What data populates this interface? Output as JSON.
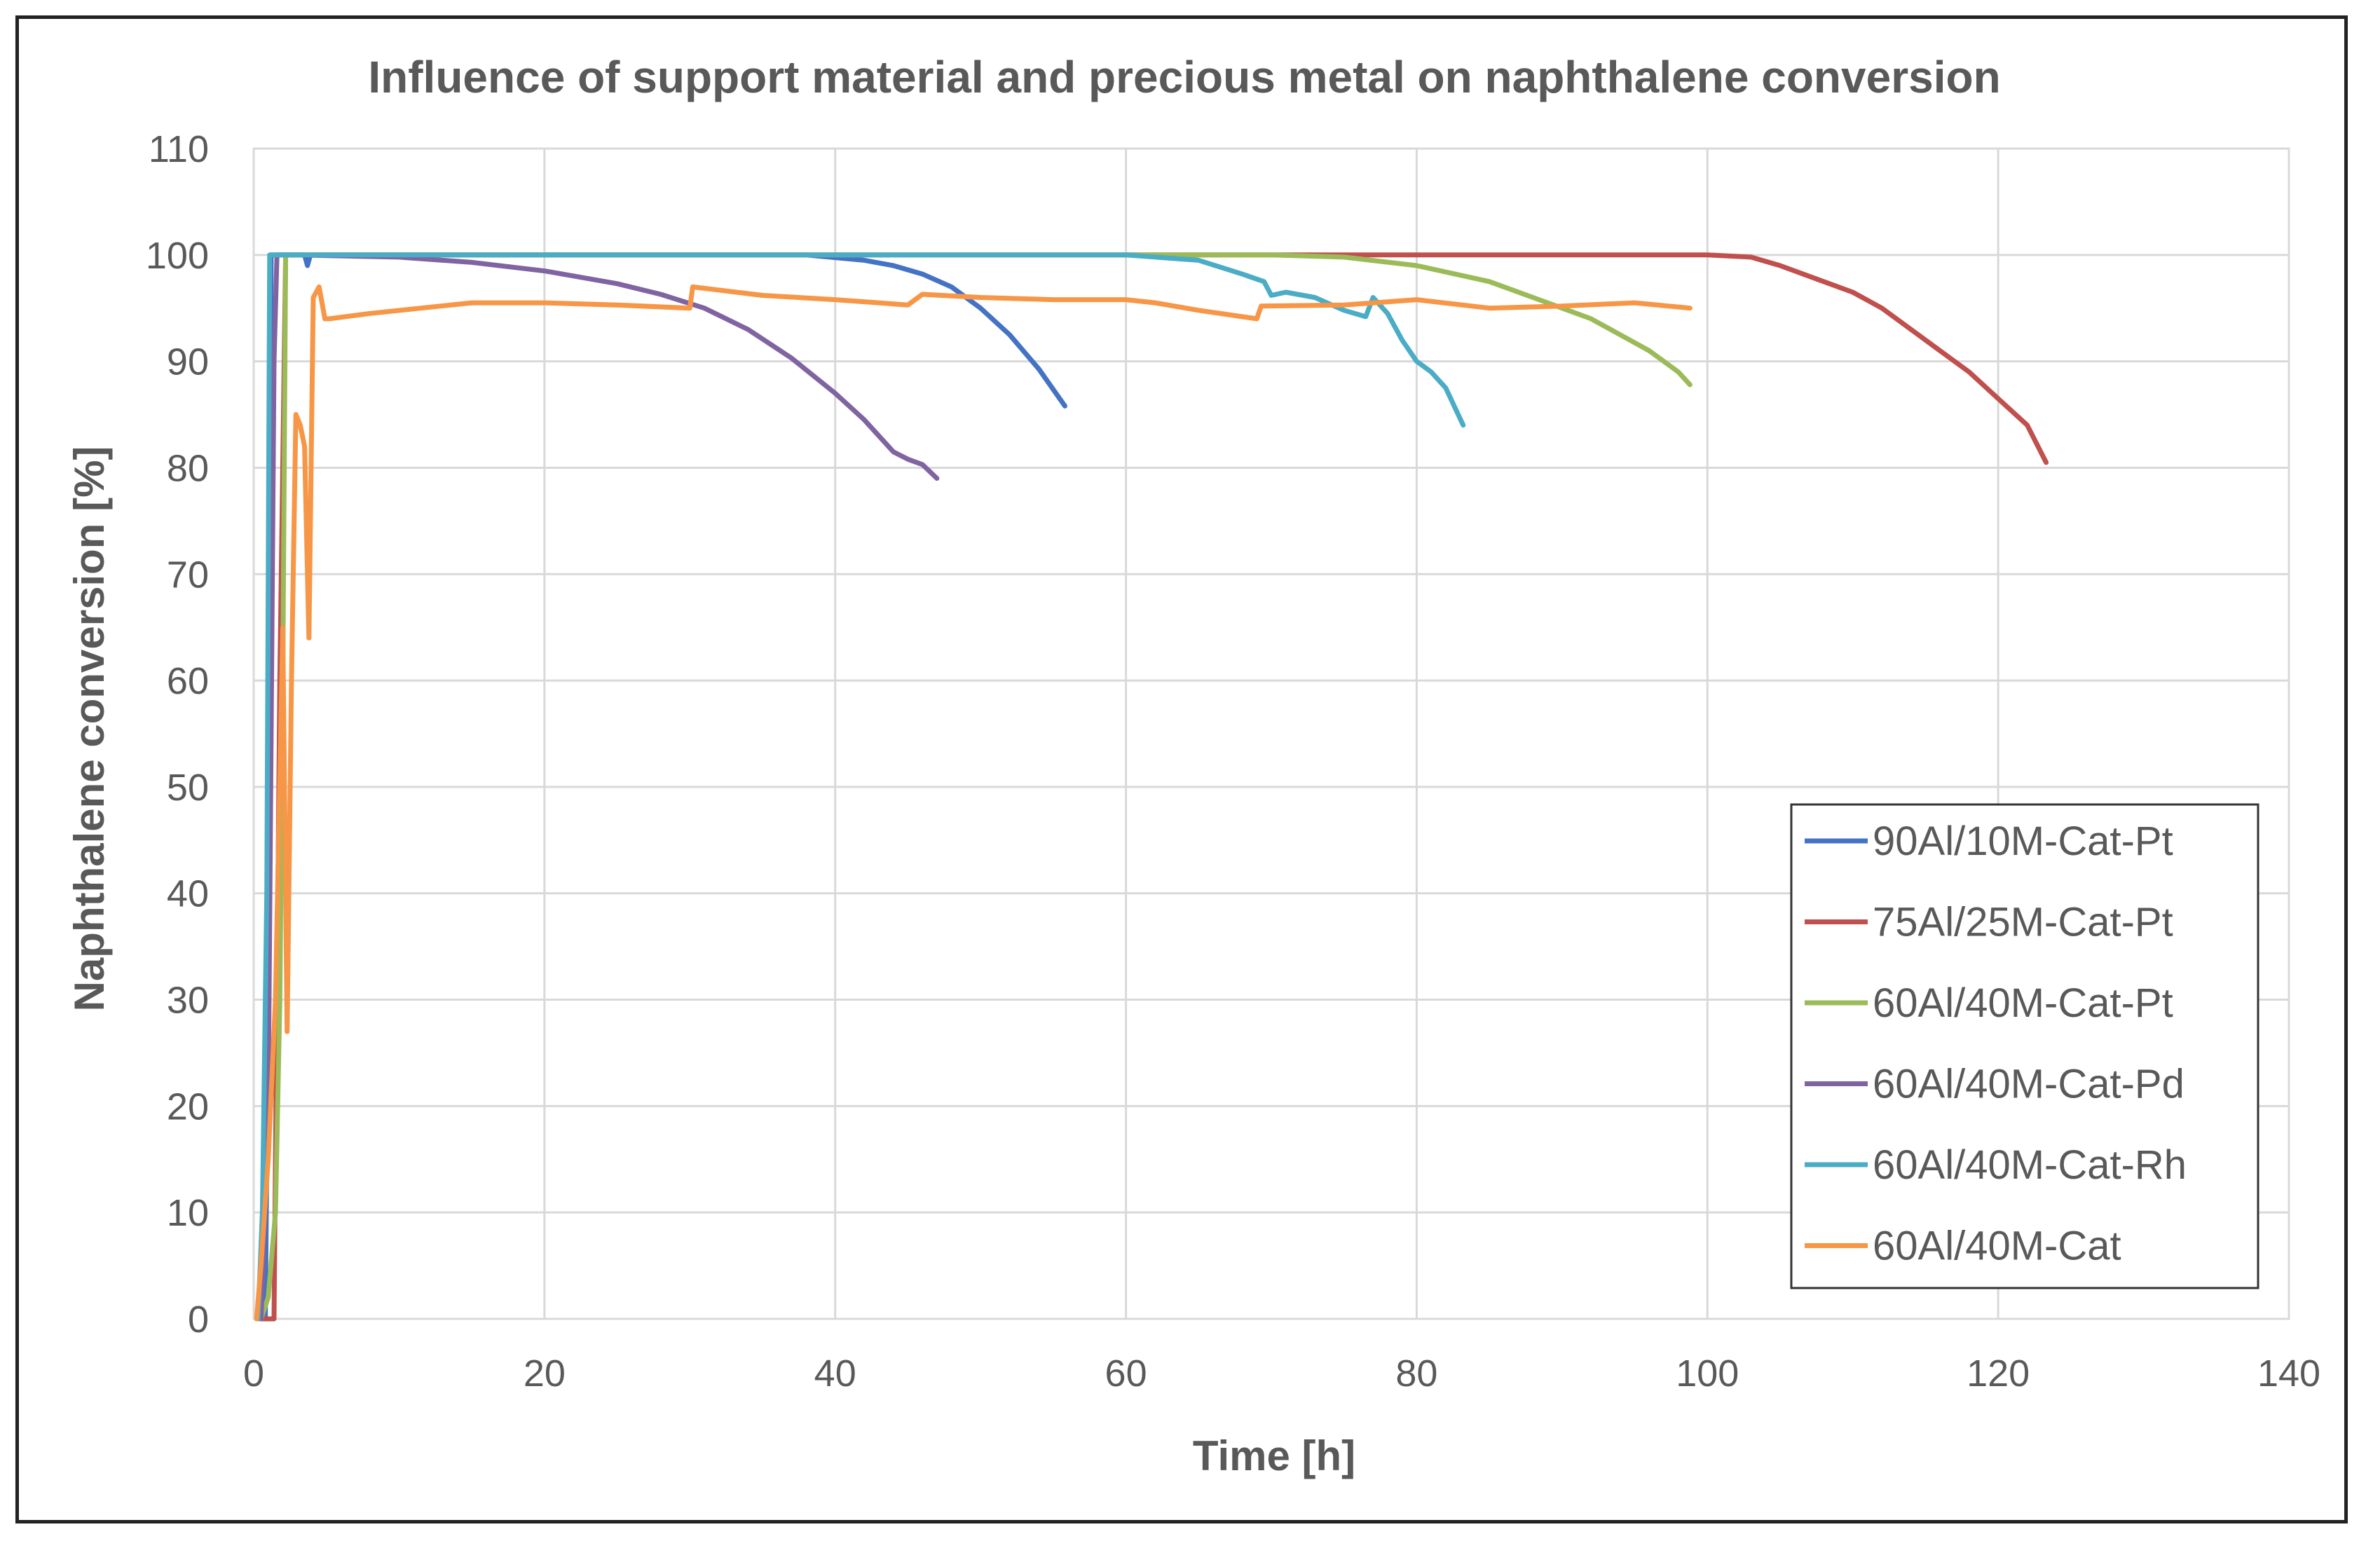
{
  "chart_data": {
    "type": "line",
    "title": "Influence of support material and  precious metal on naphthalene conversion",
    "xlabel": "Time [h]",
    "ylabel": "Naphthalene conversion [%]",
    "xlim": [
      0,
      140
    ],
    "ylim": [
      0,
      110
    ],
    "xticks": [
      0,
      20,
      40,
      60,
      80,
      100,
      120,
      140
    ],
    "yticks": [
      0,
      10,
      20,
      30,
      40,
      50,
      60,
      70,
      80,
      90,
      100,
      110
    ],
    "grid": true,
    "legend_position": "right-middle",
    "series": [
      {
        "name": "90Al/10M-Cat-Pt",
        "color": "#4472c4",
        "x": [
          0.8,
          1.0,
          1.2,
          1.4,
          2.0,
          3.5,
          3.7,
          3.9,
          10,
          20,
          30,
          38,
          42,
          44,
          46,
          48,
          50,
          52,
          54,
          55.8
        ],
        "y": [
          0,
          30,
          100,
          100,
          100,
          100,
          99,
          100,
          100,
          100,
          100,
          100,
          99.5,
          99,
          98.2,
          97,
          95,
          92.5,
          89.3,
          85.8
        ]
      },
      {
        "name": "75Al/25M-Cat-Pt",
        "color": "#c0504d",
        "x": [
          0.5,
          1.0,
          1.4,
          1.8,
          2.2,
          3,
          10,
          30,
          60,
          90,
          100,
          103,
          105,
          108,
          110,
          112,
          114,
          116,
          118,
          120,
          122,
          123.3
        ],
        "y": [
          0,
          0,
          0,
          60,
          100,
          100,
          100,
          100,
          100,
          100,
          100,
          99.8,
          99,
          97.5,
          96.5,
          95,
          93,
          91,
          89,
          86.5,
          84,
          80.5
        ]
      },
      {
        "name": "60Al/40M-Cat-Pt",
        "color": "#9bbb59",
        "x": [
          0.5,
          1.0,
          1.5,
          1.8,
          2.0,
          2.2,
          3,
          10,
          30,
          60,
          70,
          75,
          80,
          85,
          88,
          90,
          92,
          94,
          96,
          98,
          98.8
        ],
        "y": [
          0,
          2,
          10,
          30,
          60,
          100,
          100,
          100,
          100,
          100,
          100,
          99.8,
          99,
          97.5,
          96,
          95,
          94,
          92.5,
          91,
          89,
          87.8
        ]
      },
      {
        "name": "60Al/40M-Cat-Pd",
        "color": "#8064a2",
        "x": [
          0.5,
          1.0,
          1.2,
          1.4,
          1.6,
          3,
          10,
          15,
          20,
          25,
          28,
          31,
          34,
          37,
          40,
          42,
          44,
          45,
          46,
          47
        ],
        "y": [
          0,
          20,
          55,
          90,
          100,
          100,
          99.8,
          99.3,
          98.5,
          97.3,
          96.3,
          95,
          93,
          90.3,
          87,
          84.5,
          81.5,
          80.8,
          80.3,
          79
        ]
      },
      {
        "name": "60Al/40M-Cat-Rh",
        "color": "#4bacc6",
        "x": [
          0.3,
          0.6,
          0.9,
          1.1,
          1.3,
          3,
          10,
          30,
          50,
          60,
          65,
          68,
          69.5,
          70,
          71,
          73,
          75,
          76.5,
          77,
          78,
          79,
          80,
          81,
          82,
          83.2
        ],
        "y": [
          0,
          10,
          40,
          100,
          100,
          100,
          100,
          100,
          100,
          100,
          99.5,
          98.2,
          97.5,
          96.2,
          96.5,
          96,
          94.8,
          94.2,
          96,
          94.5,
          92,
          90,
          89,
          87.5,
          84
        ]
      },
      {
        "name": "60Al/40M-Cat",
        "color": "#f79646",
        "x": [
          0.2,
          0.5,
          1.0,
          1.5,
          2.0,
          2.3,
          2.6,
          2.9,
          3.2,
          3.5,
          3.8,
          4.1,
          4.5,
          4.9,
          5.2,
          8,
          15,
          20,
          25,
          30,
          30.2,
          35,
          40,
          45,
          46,
          50,
          55,
          60,
          62,
          65,
          68,
          69,
          69.3,
          75,
          80,
          85,
          90,
          95,
          98.8
        ],
        "y": [
          0,
          5,
          15,
          30,
          65,
          27,
          60,
          85,
          84,
          82,
          64,
          96,
          97,
          94,
          94,
          94.5,
          95.5,
          95.5,
          95.3,
          95,
          97,
          96.2,
          95.8,
          95.3,
          96.3,
          96,
          95.8,
          95.8,
          95.5,
          94.8,
          94.2,
          94,
          95.2,
          95.3,
          95.8,
          95,
          95.2,
          95.5,
          95
        ]
      }
    ]
  }
}
